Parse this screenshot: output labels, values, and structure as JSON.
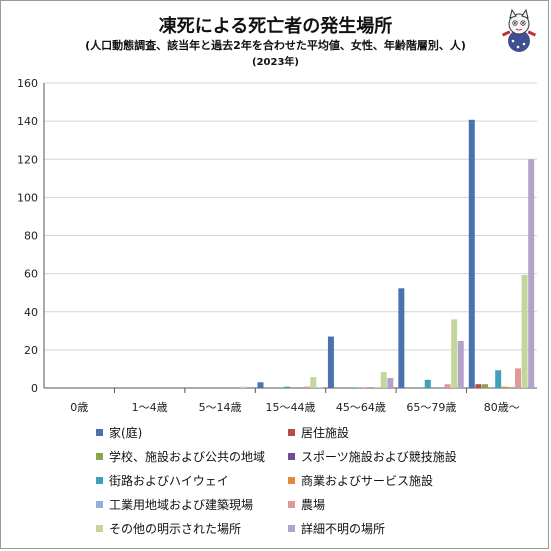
{
  "title": "凍死による死亡者の発生場所",
  "subtitle": "(人口動態調査、該当年と過去2年を合わせた平均値、女性、年齢階層別、人)",
  "subtitle2": "(2023年)",
  "chart_data": {
    "type": "bar",
    "categories": [
      "0歳",
      "1～4歳",
      "5～14歳",
      "15～44歳",
      "45～64歳",
      "65～79歳",
      "80歳～"
    ],
    "ylim": [
      0,
      160
    ],
    "yticks": [
      0,
      20,
      40,
      60,
      80,
      100,
      120,
      140,
      160
    ],
    "grid": true,
    "legend_position": "bottom",
    "series": [
      {
        "name": "家(庭)",
        "color": "#4a72b0",
        "values": [
          0,
          0,
          0,
          3,
          27,
          52.3,
          140.7
        ]
      },
      {
        "name": "居住施設",
        "color": "#b84a4a",
        "values": [
          0,
          0,
          0,
          0,
          0,
          0,
          2
        ]
      },
      {
        "name": "学校、施設および公共の地域",
        "color": "#8aa64a",
        "values": [
          0,
          0,
          0,
          0,
          0,
          0,
          2
        ]
      },
      {
        "name": "スポーツ施設および競技施設",
        "color": "#6c4f92",
        "values": [
          0,
          0,
          0,
          0,
          0,
          0,
          0
        ]
      },
      {
        "name": "街路およびハイウェイ",
        "color": "#3fa0b8",
        "values": [
          0,
          0,
          0,
          0.7,
          0.3,
          4.3,
          9.3
        ]
      },
      {
        "name": "商業およびサービス施設",
        "color": "#e08a3a",
        "values": [
          0,
          0,
          0,
          0,
          0.3,
          0,
          0.7
        ]
      },
      {
        "name": "工業用地域および建築現場",
        "color": "#8fb0d8",
        "values": [
          0,
          0,
          0,
          0,
          0,
          0,
          0
        ]
      },
      {
        "name": "農場",
        "color": "#e09898",
        "values": [
          0,
          0,
          0,
          0.7,
          0.3,
          2,
          10.3
        ]
      },
      {
        "name": "その他の明示された場所",
        "color": "#c2d89a",
        "values": [
          0,
          0,
          0.7,
          5.7,
          8.3,
          36,
          59.3
        ]
      },
      {
        "name": "詳細不明の場所",
        "color": "#b3a3c9",
        "values": [
          0,
          0,
          0,
          0.3,
          5.3,
          24.7,
          120
        ]
      }
    ]
  }
}
